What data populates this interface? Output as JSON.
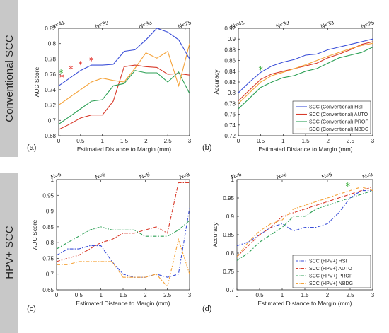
{
  "rows": [
    {
      "title": "Conventional SCC"
    },
    {
      "title": "HPV+ SCC"
    }
  ],
  "colors": {
    "HSI": "#3b4fd8",
    "AUTO": "#d83a2a",
    "PROF": "#2ca055",
    "NBDG": "#f5a33a",
    "sidebar": "#c8c8c8",
    "star_red": "#e0211b",
    "star_green": "#33aa33"
  },
  "chart_data": [
    {
      "panel": "(a)",
      "type": "line",
      "xlabel": "Estimated Distance to Margin (mm)",
      "ylabel": "AUC Score",
      "xlim": [
        0,
        3
      ],
      "ylim": [
        0.68,
        0.82
      ],
      "xticks": [
        0,
        0.5,
        1,
        1.5,
        2,
        2.5,
        3
      ],
      "yticks": [
        0.68,
        0.7,
        0.72,
        0.74,
        0.76,
        0.78,
        0.8,
        0.82
      ],
      "top_ticks": [
        {
          "x": 0,
          "label": "N=41"
        },
        {
          "x": 1,
          "label": "N=39"
        },
        {
          "x": 2,
          "label": "N=33"
        },
        {
          "x": 2.9,
          "label": "N=25"
        }
      ],
      "dash": "solid",
      "legend": null,
      "series": [
        {
          "key": "HSI",
          "x": [
            0,
            0.25,
            0.5,
            0.75,
            1,
            1.25,
            1.5,
            1.75,
            2,
            2.25,
            2.5,
            2.75,
            3
          ],
          "y": [
            0.745,
            0.755,
            0.765,
            0.772,
            0.772,
            0.773,
            0.79,
            0.792,
            0.805,
            0.82,
            0.815,
            0.805,
            0.78
          ]
        },
        {
          "key": "AUTO",
          "x": [
            0,
            0.25,
            0.5,
            0.75,
            1,
            1.25,
            1.5,
            1.75,
            2,
            2.25,
            2.5,
            2.75,
            3
          ],
          "y": [
            0.688,
            0.695,
            0.703,
            0.707,
            0.707,
            0.725,
            0.77,
            0.772,
            0.77,
            0.769,
            0.76,
            0.761,
            0.759
          ]
        },
        {
          "key": "PROF",
          "x": [
            0,
            0.25,
            0.5,
            0.75,
            1,
            1.25,
            1.5,
            1.75,
            2,
            2.25,
            2.5,
            2.75,
            3
          ],
          "y": [
            0.695,
            0.705,
            0.715,
            0.725,
            0.727,
            0.745,
            0.748,
            0.765,
            0.762,
            0.762,
            0.75,
            0.763,
            0.735
          ]
        },
        {
          "key": "NBDG",
          "x": [
            0,
            0.25,
            0.5,
            0.75,
            1,
            1.25,
            1.5,
            1.75,
            2,
            2.25,
            2.5,
            2.75,
            3
          ],
          "y": [
            0.72,
            0.73,
            0.74,
            0.75,
            0.755,
            0.752,
            0.75,
            0.768,
            0.788,
            0.781,
            0.79,
            0.745,
            0.8
          ]
        }
      ],
      "stars": [
        {
          "x": 0.05,
          "y": 0.762,
          "color": "star_green"
        },
        {
          "x": 0.07,
          "y": 0.756,
          "color": "star_red"
        },
        {
          "x": 0.28,
          "y": 0.767,
          "color": "star_red"
        },
        {
          "x": 0.5,
          "y": 0.773,
          "color": "star_red"
        },
        {
          "x": 0.75,
          "y": 0.778,
          "color": "star_red"
        }
      ]
    },
    {
      "panel": "(b)",
      "type": "line",
      "xlabel": "Estimated Distance to Margin (mm)",
      "ylabel": "Accuracy",
      "xlim": [
        0,
        3
      ],
      "ylim": [
        0.72,
        0.92
      ],
      "xticks": [
        0,
        0.5,
        1,
        1.5,
        2,
        2.5,
        3
      ],
      "yticks": [
        0.72,
        0.74,
        0.76,
        0.78,
        0.8,
        0.82,
        0.84,
        0.86,
        0.88,
        0.9,
        0.92
      ],
      "top_ticks": [
        {
          "x": 0,
          "label": "N=41"
        },
        {
          "x": 1,
          "label": "N=39"
        },
        {
          "x": 2,
          "label": "N=33"
        },
        {
          "x": 2.9,
          "label": "N=25"
        }
      ],
      "dash": "solid",
      "legend": {
        "position": "bottom-right",
        "entries": [
          "SCC (Conventional) HSI",
          "SCC (Conventional) AUTO",
          "SCC (Conventional) PROF",
          "SCC (Conventional) NBDG"
        ]
      },
      "series": [
        {
          "key": "HSI",
          "x": [
            0,
            0.25,
            0.5,
            0.75,
            1,
            1.25,
            1.5,
            1.75,
            2,
            2.25,
            2.5,
            2.75,
            3
          ],
          "y": [
            0.8,
            0.82,
            0.838,
            0.85,
            0.857,
            0.862,
            0.87,
            0.872,
            0.88,
            0.885,
            0.89,
            0.895,
            0.9
          ]
        },
        {
          "key": "AUTO",
          "x": [
            0,
            0.25,
            0.5,
            0.75,
            1,
            1.25,
            1.5,
            1.75,
            2,
            2.25,
            2.5,
            2.75,
            3
          ],
          "y": [
            0.785,
            0.805,
            0.825,
            0.835,
            0.84,
            0.845,
            0.85,
            0.855,
            0.865,
            0.872,
            0.88,
            0.89,
            0.895
          ]
        },
        {
          "key": "PROF",
          "x": [
            0,
            0.25,
            0.5,
            0.75,
            1,
            1.25,
            1.5,
            1.75,
            2,
            2.25,
            2.5,
            2.75,
            3
          ],
          "y": [
            0.77,
            0.79,
            0.81,
            0.82,
            0.828,
            0.832,
            0.84,
            0.845,
            0.855,
            0.865,
            0.87,
            0.875,
            0.885
          ]
        },
        {
          "key": "NBDG",
          "x": [
            0,
            0.25,
            0.5,
            0.75,
            1,
            1.25,
            1.5,
            1.75,
            2,
            2.25,
            2.5,
            2.75,
            3
          ],
          "y": [
            0.78,
            0.8,
            0.82,
            0.832,
            0.838,
            0.845,
            0.852,
            0.86,
            0.868,
            0.875,
            0.882,
            0.888,
            0.892
          ]
        }
      ],
      "stars": [
        {
          "x": 0.5,
          "y": 0.843,
          "color": "star_green"
        }
      ]
    },
    {
      "panel": "(c)",
      "type": "line",
      "xlabel": "Estimated Distance to Margin (mm)",
      "ylabel": "AUC Score",
      "xlim": [
        0,
        3
      ],
      "ylim": [
        0.65,
        1
      ],
      "xticks": [
        0,
        0.5,
        1,
        1.5,
        2,
        2.5,
        3
      ],
      "yticks": [
        0.65,
        0.7,
        0.75,
        0.8,
        0.85,
        0.9,
        0.95,
        1
      ],
      "top_ticks": [
        {
          "x": 0,
          "label": "N=6"
        },
        {
          "x": 1,
          "label": "N=6"
        },
        {
          "x": 2,
          "label": "N=5"
        },
        {
          "x": 2.9,
          "label": "N=3"
        }
      ],
      "dash": "dashdot",
      "legend": null,
      "series": [
        {
          "key": "HSI",
          "x": [
            0,
            0.25,
            0.5,
            0.75,
            1,
            1.25,
            1.5,
            1.75,
            2,
            2.25,
            2.5,
            2.75,
            3
          ],
          "y": [
            0.76,
            0.78,
            0.78,
            0.79,
            0.79,
            0.74,
            0.7,
            0.69,
            0.69,
            0.7,
            0.69,
            0.7,
            0.91
          ]
        },
        {
          "key": "AUTO",
          "x": [
            0,
            0.25,
            0.5,
            0.75,
            1,
            1.25,
            1.5,
            1.75,
            2,
            2.25,
            2.5,
            2.75,
            3
          ],
          "y": [
            0.74,
            0.75,
            0.76,
            0.78,
            0.8,
            0.81,
            0.83,
            0.83,
            0.84,
            0.85,
            0.83,
            0.99,
            0.99
          ]
        },
        {
          "key": "PROF",
          "x": [
            0,
            0.25,
            0.5,
            0.75,
            1,
            1.25,
            1.5,
            1.75,
            2,
            2.25,
            2.5,
            2.75,
            3
          ],
          "y": [
            0.78,
            0.8,
            0.82,
            0.84,
            0.85,
            0.84,
            0.84,
            0.84,
            0.82,
            0.82,
            0.82,
            0.84,
            0.87
          ]
        },
        {
          "key": "NBDG",
          "x": [
            0,
            0.25,
            0.5,
            0.75,
            1,
            1.25,
            1.5,
            1.75,
            2,
            2.25,
            2.5,
            2.75,
            3
          ],
          "y": [
            0.73,
            0.73,
            0.74,
            0.74,
            0.74,
            0.74,
            0.69,
            0.69,
            0.69,
            0.7,
            0.66,
            0.81,
            0.7
          ]
        }
      ],
      "stars": []
    },
    {
      "panel": "(d)",
      "type": "line",
      "xlabel": "Estimated Distance to Margin (mm)",
      "ylabel": "Accuracy",
      "xlim": [
        0,
        3
      ],
      "ylim": [
        0.7,
        1
      ],
      "xticks": [
        0,
        0.5,
        1,
        1.5,
        2,
        2.5,
        3
      ],
      "yticks": [
        0.7,
        0.75,
        0.8,
        0.85,
        0.9,
        0.95,
        1
      ],
      "top_ticks": [
        {
          "x": 0,
          "label": "N=6"
        },
        {
          "x": 1,
          "label": "N=6"
        },
        {
          "x": 2,
          "label": "N=5"
        },
        {
          "x": 2.9,
          "label": "N=3"
        }
      ],
      "dash": "dashdot",
      "legend": {
        "position": "bottom-right",
        "entries": [
          "SCC (HPV+) HSI",
          "SCC (HPV+) AUTO",
          "SCC (HPV+) PROF",
          "SCC (HPV+) NBDG"
        ]
      },
      "series": [
        {
          "key": "HSI",
          "x": [
            0,
            0.25,
            0.5,
            0.75,
            1,
            1.25,
            1.5,
            1.75,
            2,
            2.25,
            2.5,
            2.75,
            3
          ],
          "y": [
            0.82,
            0.83,
            0.85,
            0.87,
            0.88,
            0.86,
            0.87,
            0.87,
            0.88,
            0.91,
            0.95,
            0.97,
            0.97
          ]
        },
        {
          "key": "AUTO",
          "x": [
            0,
            0.25,
            0.5,
            0.75,
            1,
            1.25,
            1.5,
            1.75,
            2,
            2.25,
            2.5,
            2.75,
            3
          ],
          "y": [
            0.79,
            0.82,
            0.85,
            0.87,
            0.9,
            0.91,
            0.92,
            0.93,
            0.94,
            0.95,
            0.96,
            0.97,
            0.98
          ]
        },
        {
          "key": "PROF",
          "x": [
            0,
            0.25,
            0.5,
            0.75,
            1,
            1.25,
            1.5,
            1.75,
            2,
            2.25,
            2.5,
            2.75,
            3
          ],
          "y": [
            0.78,
            0.8,
            0.83,
            0.85,
            0.87,
            0.9,
            0.9,
            0.92,
            0.93,
            0.94,
            0.95,
            0.96,
            0.97
          ]
        },
        {
          "key": "NBDG",
          "x": [
            0,
            0.25,
            0.5,
            0.75,
            1,
            1.25,
            1.5,
            1.75,
            2,
            2.25,
            2.5,
            2.75,
            3
          ],
          "y": [
            0.79,
            0.83,
            0.86,
            0.88,
            0.89,
            0.92,
            0.93,
            0.94,
            0.95,
            0.96,
            0.97,
            0.98,
            0.97
          ]
        }
      ],
      "stars": [
        {
          "x": 2.45,
          "y": 0.983,
          "color": "star_green"
        }
      ]
    }
  ]
}
